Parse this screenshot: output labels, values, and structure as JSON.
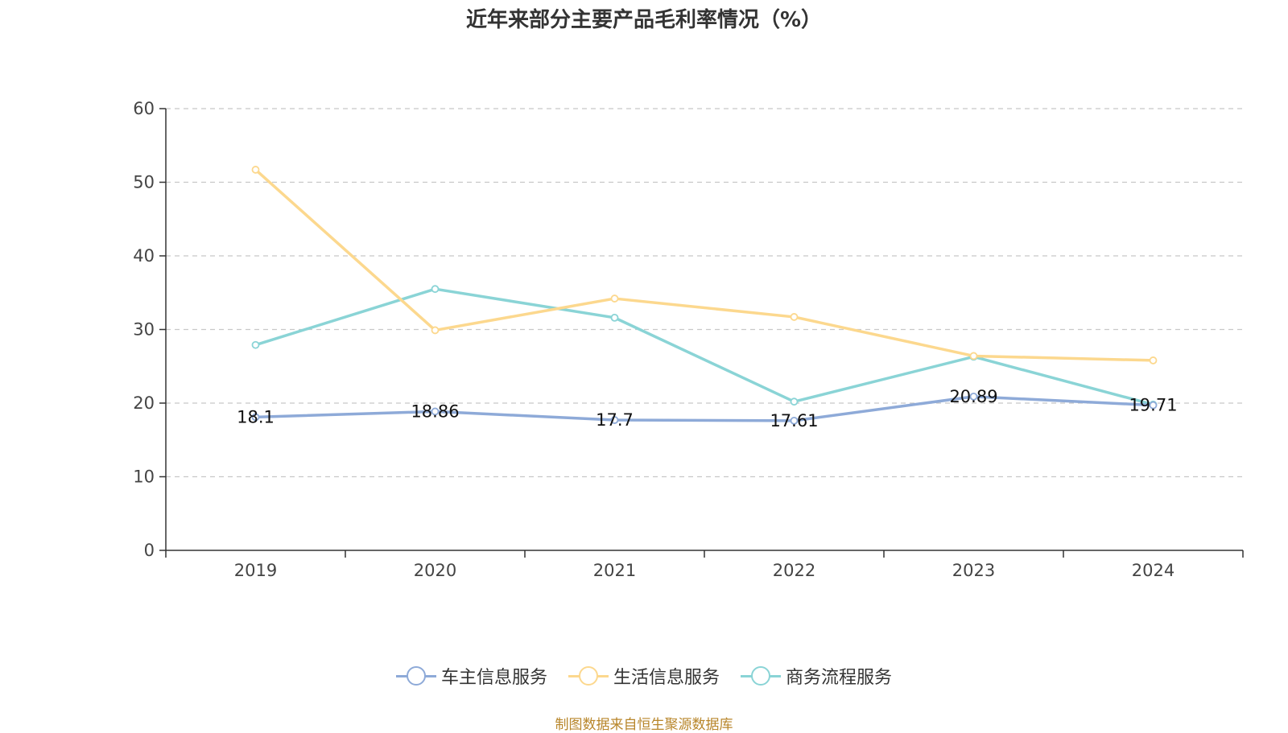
{
  "title": "近年来部分主要产品毛利率情况（%）",
  "footer": "制图数据来自恒生聚源数据库",
  "chart_data": {
    "type": "line",
    "title": "近年来部分主要产品毛利率情况（%）",
    "categories": [
      "2019",
      "2020",
      "2021",
      "2022",
      "2023",
      "2024"
    ],
    "ylim": [
      0,
      60
    ],
    "yticks": [
      0,
      10,
      20,
      30,
      40,
      50,
      60
    ],
    "grid": true,
    "legend_position": "bottom",
    "series": [
      {
        "name": "车主信息服务",
        "color": "#8eaad8",
        "values": [
          18.1,
          18.86,
          17.7,
          17.61,
          20.89,
          19.71
        ],
        "labels": [
          "18.1",
          "18.86",
          "17.7",
          "17.61",
          "20.89",
          "19.71"
        ],
        "show_labels": true
      },
      {
        "name": "生活信息服务",
        "color": "#fcd88e",
        "values": [
          51.7,
          29.9,
          34.2,
          31.7,
          26.4,
          25.8
        ],
        "show_labels": false
      },
      {
        "name": "商务流程服务",
        "color": "#8ad4d6",
        "values": [
          27.9,
          35.5,
          31.6,
          20.2,
          26.3,
          19.8
        ],
        "show_labels": false
      }
    ]
  }
}
